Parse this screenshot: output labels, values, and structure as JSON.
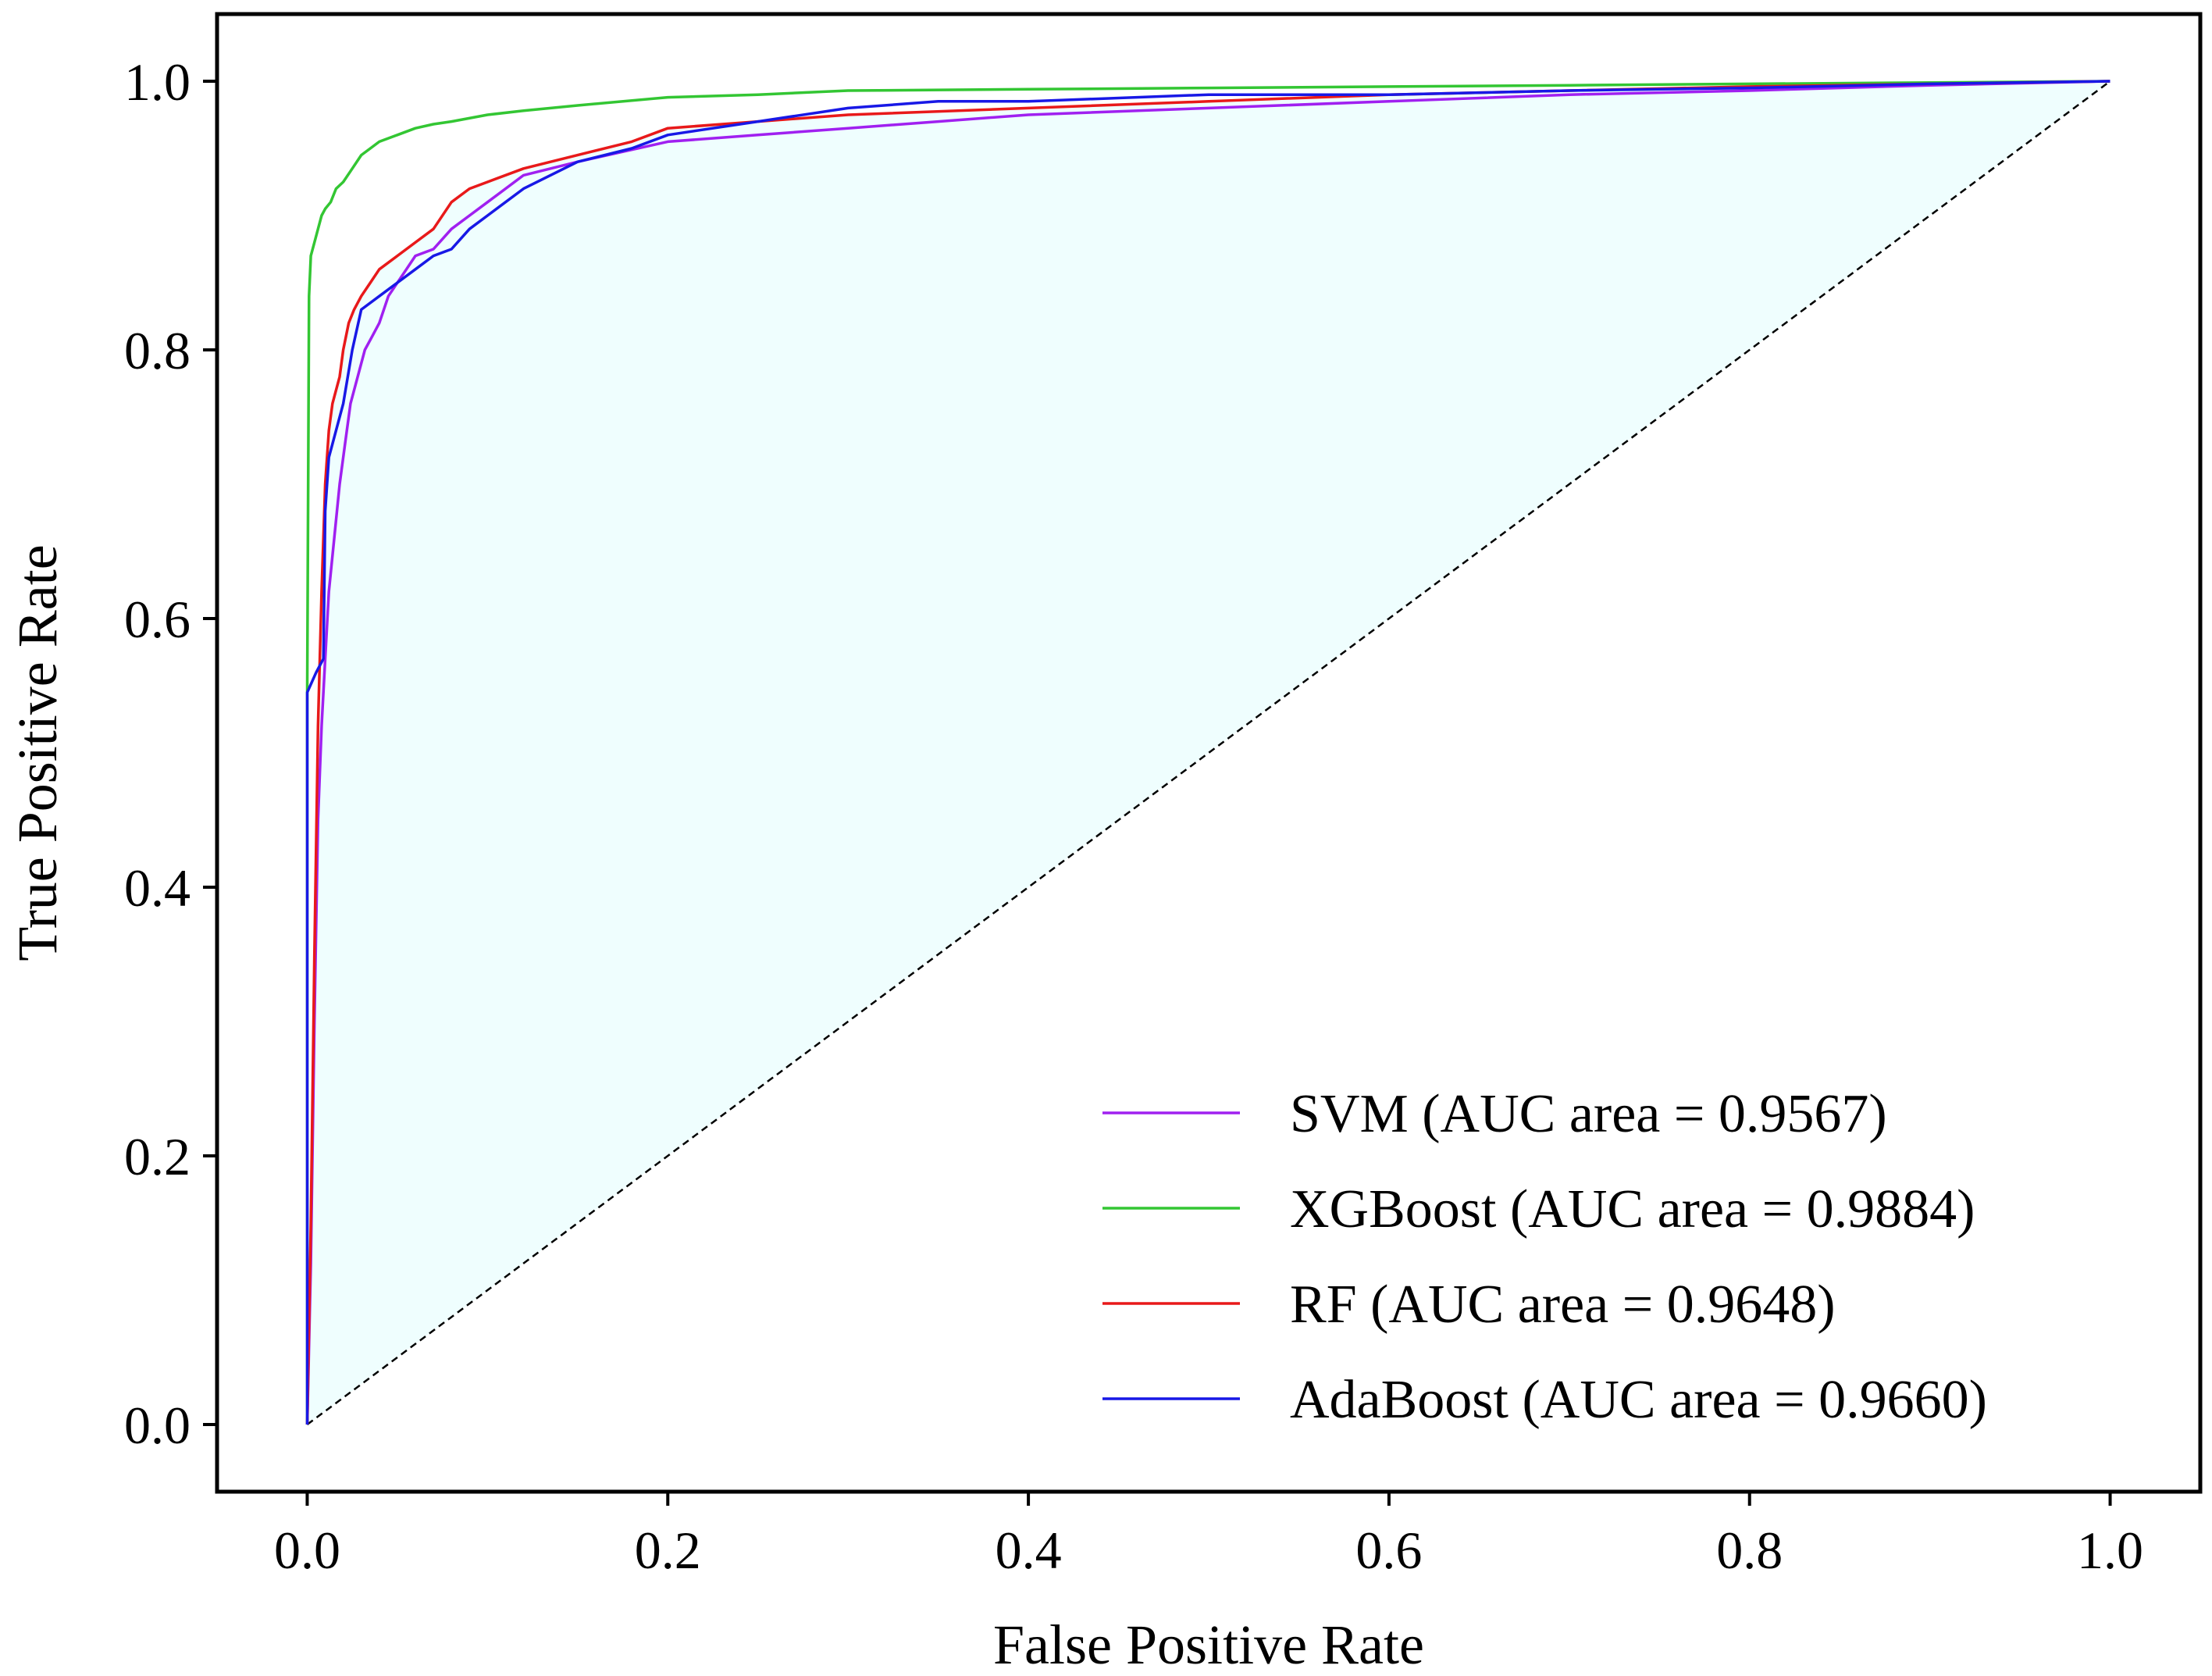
{
  "chart_data": {
    "type": "line",
    "title": "",
    "xlabel": "False Positive Rate",
    "ylabel": "True Positive Rate",
    "xlim": [
      -0.05,
      1.05
    ],
    "ylim": [
      -0.05,
      1.05
    ],
    "xticks": [
      0.0,
      0.2,
      0.4,
      0.6,
      0.8,
      1.0
    ],
    "yticks": [
      0.0,
      0.2,
      0.4,
      0.6,
      0.8,
      1.0
    ],
    "tick_labels": [
      "0.0",
      "0.2",
      "0.4",
      "0.6",
      "0.8",
      "1.0"
    ],
    "legend_position": "lower-right",
    "fill_color": "#effefe",
    "diagonal": {
      "x": [
        0,
        1
      ],
      "y": [
        0,
        1
      ],
      "style": "dashed",
      "color": "#000000"
    },
    "series": [
      {
        "name": "SVM",
        "label": "SVM (AUC area = 0.9567)",
        "color": "#a020f0",
        "x": [
          0,
          0.002,
          0.004,
          0.006,
          0.008,
          0.01,
          0.012,
          0.015,
          0.018,
          0.021,
          0.024,
          0.028,
          0.032,
          0.036,
          0.04,
          0.045,
          0.05,
          0.055,
          0.06,
          0.07,
          0.08,
          0.09,
          0.1,
          0.12,
          0.15,
          0.2,
          0.25,
          0.3,
          0.35,
          0.4,
          0.5,
          0.6,
          0.7,
          0.8,
          0.9,
          1.0
        ],
        "y": [
          0,
          0.12,
          0.3,
          0.45,
          0.52,
          0.57,
          0.62,
          0.66,
          0.7,
          0.73,
          0.76,
          0.78,
          0.8,
          0.81,
          0.82,
          0.84,
          0.85,
          0.86,
          0.87,
          0.875,
          0.89,
          0.9,
          0.91,
          0.93,
          0.94,
          0.955,
          0.96,
          0.965,
          0.97,
          0.975,
          0.98,
          0.985,
          0.99,
          0.993,
          0.997,
          1.0
        ]
      },
      {
        "name": "XGBoost",
        "label": "XGBoost (AUC area = 0.9884)",
        "color": "#33c633",
        "x": [
          0,
          0,
          0.001,
          0.002,
          0.004,
          0.006,
          0.008,
          0.01,
          0.013,
          0.016,
          0.02,
          0.025,
          0.03,
          0.035,
          0.04,
          0.05,
          0.06,
          0.07,
          0.08,
          0.1,
          0.12,
          0.15,
          0.2,
          0.25,
          0.3,
          0.4,
          0.5,
          0.6,
          0.7,
          0.8,
          0.9,
          1.0
        ],
        "y": [
          0,
          0.55,
          0.84,
          0.87,
          0.88,
          0.89,
          0.9,
          0.905,
          0.91,
          0.92,
          0.925,
          0.935,
          0.945,
          0.95,
          0.955,
          0.96,
          0.965,
          0.968,
          0.97,
          0.975,
          0.978,
          0.982,
          0.988,
          0.99,
          0.993,
          0.994,
          0.995,
          0.996,
          0.997,
          0.998,
          0.999,
          1.0
        ]
      },
      {
        "name": "RF",
        "label": "RF (AUC area = 0.9648)",
        "color": "#e8191a",
        "x": [
          0,
          0.002,
          0.004,
          0.006,
          0.008,
          0.01,
          0.012,
          0.014,
          0.016,
          0.018,
          0.02,
          0.023,
          0.026,
          0.03,
          0.035,
          0.04,
          0.045,
          0.05,
          0.06,
          0.07,
          0.08,
          0.09,
          0.1,
          0.12,
          0.15,
          0.18,
          0.2,
          0.25,
          0.3,
          0.4,
          0.5,
          0.6,
          0.7,
          0.8,
          0.9,
          1.0
        ],
        "y": [
          0,
          0.15,
          0.35,
          0.52,
          0.62,
          0.7,
          0.74,
          0.76,
          0.77,
          0.78,
          0.8,
          0.82,
          0.83,
          0.84,
          0.85,
          0.86,
          0.865,
          0.87,
          0.88,
          0.89,
          0.91,
          0.92,
          0.925,
          0.935,
          0.945,
          0.955,
          0.965,
          0.97,
          0.975,
          0.98,
          0.985,
          0.99,
          0.993,
          0.996,
          0.998,
          1.0
        ]
      },
      {
        "name": "AdaBoost",
        "label": "AdaBoost (AUC area = 0.9660)",
        "color": "#1818e6",
        "x": [
          0,
          0,
          0.005,
          0.009,
          0.01,
          0.012,
          0.014,
          0.016,
          0.02,
          0.025,
          0.03,
          0.04,
          0.05,
          0.06,
          0.07,
          0.08,
          0.09,
          0.1,
          0.12,
          0.15,
          0.18,
          0.2,
          0.25,
          0.3,
          0.35,
          0.4,
          0.5,
          0.6,
          0.7,
          0.8,
          0.9,
          1.0
        ],
        "y": [
          0,
          0.545,
          0.56,
          0.57,
          0.68,
          0.72,
          0.73,
          0.74,
          0.76,
          0.8,
          0.83,
          0.84,
          0.85,
          0.86,
          0.87,
          0.875,
          0.89,
          0.9,
          0.92,
          0.94,
          0.95,
          0.96,
          0.97,
          0.98,
          0.985,
          0.985,
          0.99,
          0.99,
          0.993,
          0.995,
          0.998,
          1.0
        ]
      }
    ]
  }
}
